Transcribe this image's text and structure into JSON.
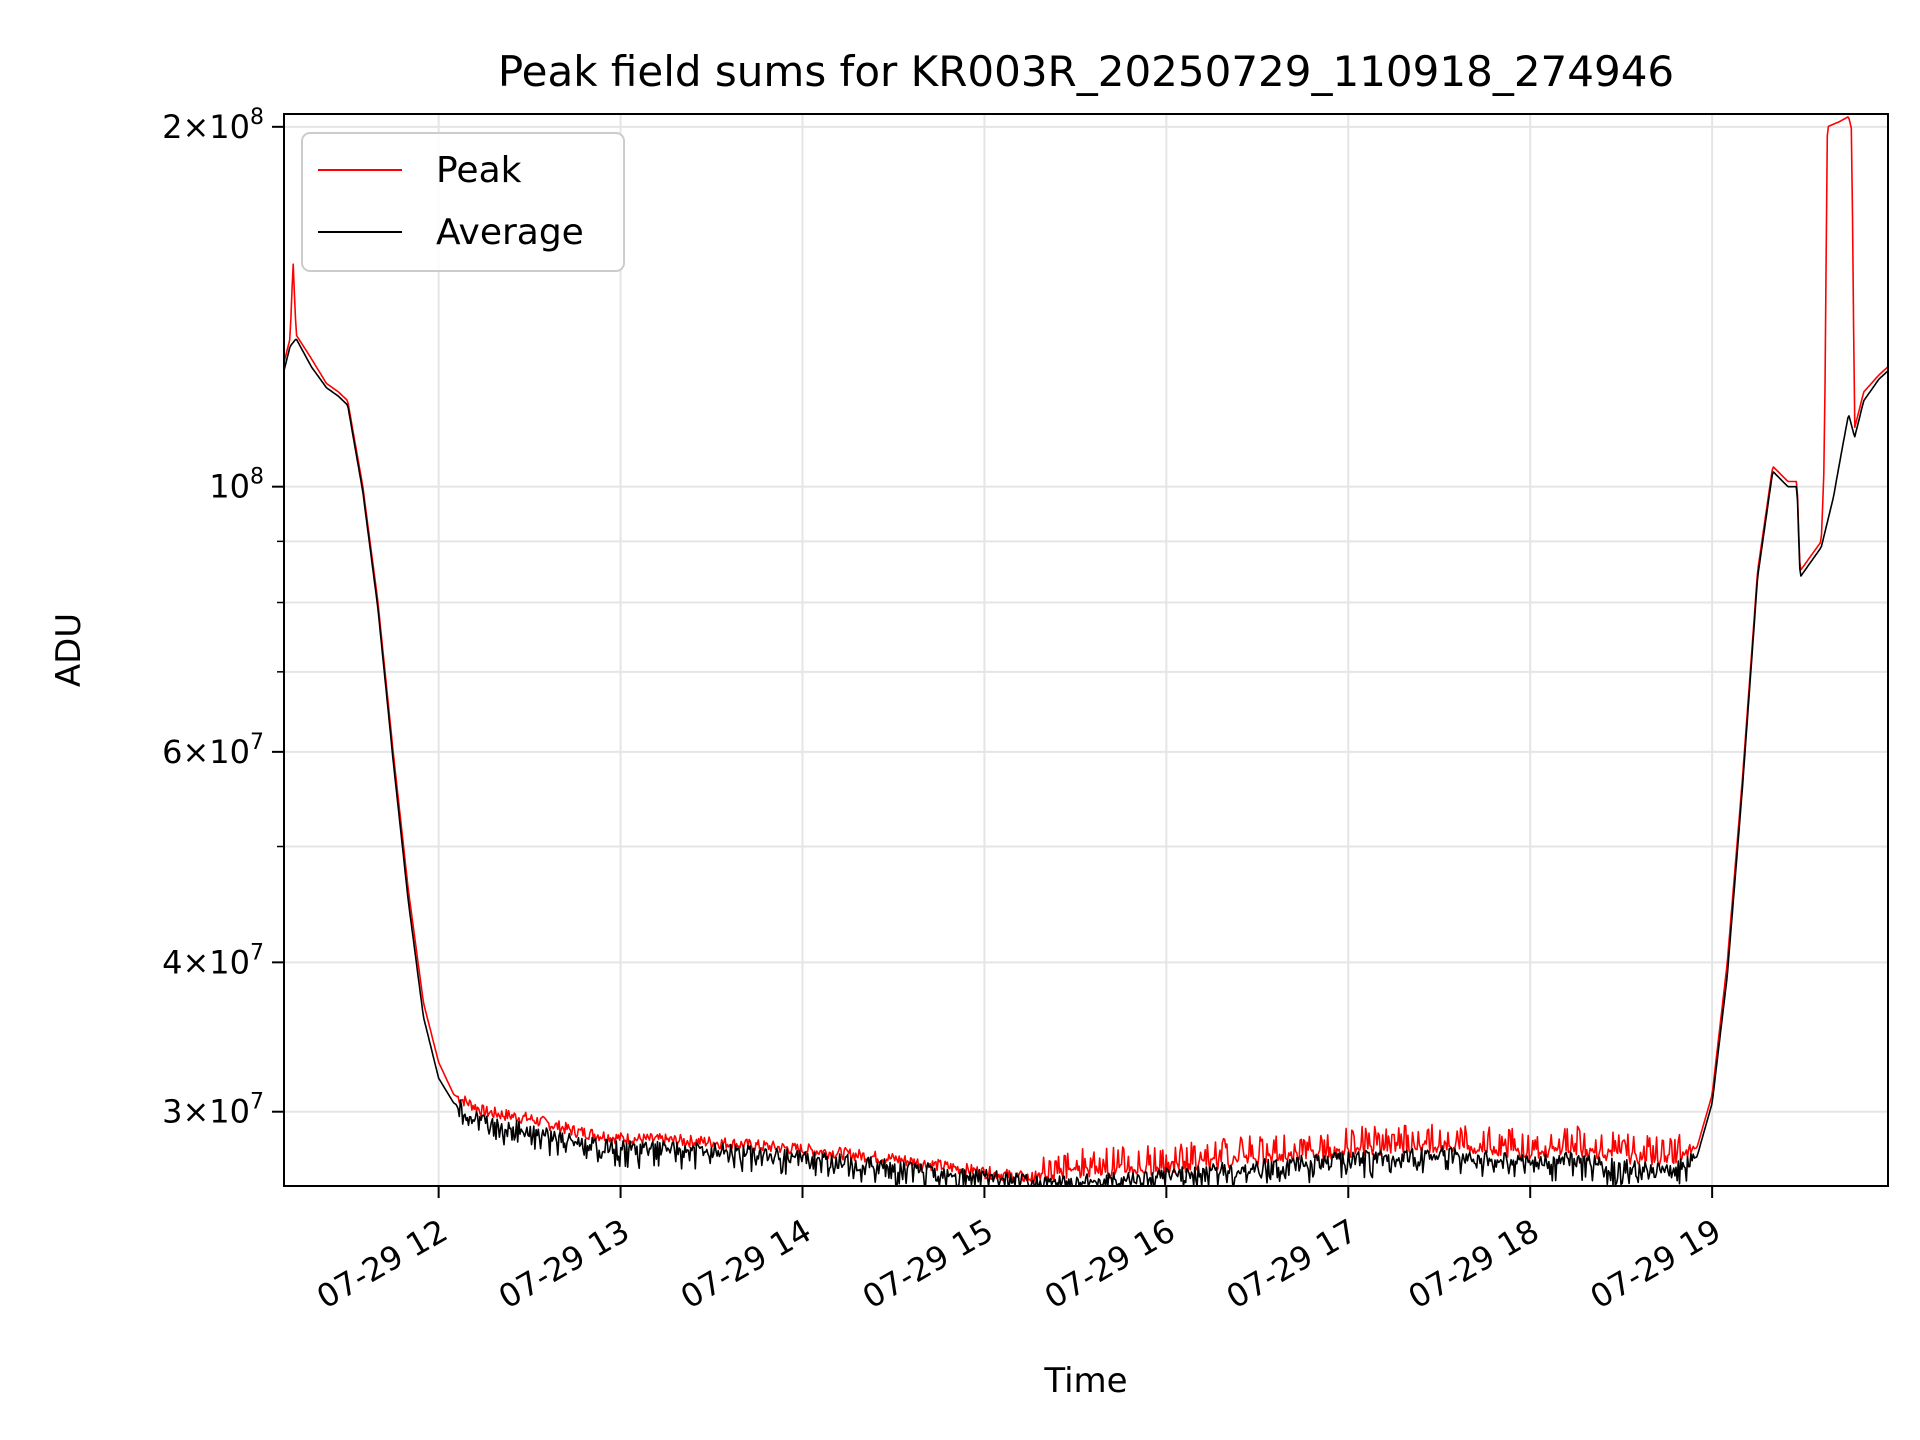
{
  "chart_data": {
    "type": "line",
    "title": "Peak field sums for KR003R_20250729_110918_274946",
    "xlabel": "Time",
    "ylabel": "ADU",
    "yscale": "log",
    "xlim": [
      "2025-07-29T11:09",
      "2025-07-29T19:58"
    ],
    "ylim": [
      26000000,
      205000000
    ],
    "grid": true,
    "legend_position": "upper-left",
    "x_ticks": [
      {
        "x": "2025-07-29T12:00",
        "label": "07-29 12"
      },
      {
        "x": "2025-07-29T13:00",
        "label": "07-29 13"
      },
      {
        "x": "2025-07-29T14:00",
        "label": "07-29 14"
      },
      {
        "x": "2025-07-29T15:00",
        "label": "07-29 15"
      },
      {
        "x": "2025-07-29T16:00",
        "label": "07-29 16"
      },
      {
        "x": "2025-07-29T17:00",
        "label": "07-29 17"
      },
      {
        "x": "2025-07-29T18:00",
        "label": "07-29 18"
      },
      {
        "x": "2025-07-29T19:00",
        "label": "07-29 19"
      }
    ],
    "y_ticks": [
      {
        "value": 200000000,
        "mantissa": "2",
        "exponent": "8"
      },
      {
        "value": 100000000,
        "mantissa": "",
        "exponent": "8"
      },
      {
        "value": 60000000,
        "mantissa": "6",
        "exponent": "7"
      },
      {
        "value": 40000000,
        "mantissa": "4",
        "exponent": "7"
      },
      {
        "value": 30000000,
        "mantissa": "3",
        "exponent": "7"
      }
    ],
    "y_minor_ticks": [
      90000000,
      80000000,
      70000000,
      50000000
    ],
    "series": [
      {
        "name": "Peak",
        "color": "#ff0000",
        "points": [
          [
            "2025-07-29T11:09",
            127000000
          ],
          [
            "2025-07-29T11:11",
            133000000
          ],
          [
            "2025-07-29T11:12",
            154000000
          ],
          [
            "2025-07-29T11:13",
            134000000
          ],
          [
            "2025-07-29T11:18",
            128000000
          ],
          [
            "2025-07-29T11:23",
            122000000
          ],
          [
            "2025-07-29T11:27",
            120000000
          ],
          [
            "2025-07-29T11:30",
            118000000
          ],
          [
            "2025-07-29T11:35",
            100000000
          ],
          [
            "2025-07-29T11:40",
            80000000
          ],
          [
            "2025-07-29T11:45",
            60000000
          ],
          [
            "2025-07-29T11:50",
            46000000
          ],
          [
            "2025-07-29T11:55",
            37000000
          ],
          [
            "2025-07-29T12:00",
            33000000
          ],
          [
            "2025-07-29T12:05",
            31000000
          ],
          [
            "2025-07-29T12:15",
            30000000
          ],
          [
            "2025-07-29T12:30",
            29600000
          ],
          [
            "2025-07-29T12:45",
            28900000
          ],
          [
            "2025-07-29T13:00",
            28500000
          ],
          [
            "2025-07-29T13:30",
            28300000
          ],
          [
            "2025-07-29T14:00",
            27900000
          ],
          [
            "2025-07-29T14:30",
            27400000
          ],
          [
            "2025-07-29T15:00",
            26700000
          ],
          [
            "2025-07-29T15:15",
            26400000
          ],
          [
            "2025-07-29T15:30",
            26700000
          ],
          [
            "2025-07-29T16:00",
            26900000
          ],
          [
            "2025-07-29T16:30",
            27400000
          ],
          [
            "2025-07-29T17:00",
            27800000
          ],
          [
            "2025-07-29T17:30",
            28100000
          ],
          [
            "2025-07-29T18:00",
            27700000
          ],
          [
            "2025-07-29T18:15",
            27900000
          ],
          [
            "2025-07-29T18:30",
            27500000
          ],
          [
            "2025-07-29T18:45",
            27300000
          ],
          [
            "2025-07-29T18:55",
            28000000
          ],
          [
            "2025-07-29T19:00",
            31000000
          ],
          [
            "2025-07-29T19:05",
            40000000
          ],
          [
            "2025-07-29T19:10",
            57000000
          ],
          [
            "2025-07-29T19:15",
            85000000
          ],
          [
            "2025-07-29T19:18",
            96000000
          ],
          [
            "2025-07-29T19:20",
            104000000
          ],
          [
            "2025-07-29T19:25",
            101000000
          ],
          [
            "2025-07-29T19:28",
            101000000
          ],
          [
            "2025-07-29T19:29",
            85000000
          ],
          [
            "2025-07-29T19:36",
            90000000
          ],
          [
            "2025-07-29T19:37",
            105000000
          ],
          [
            "2025-07-29T19:38",
            200000000
          ],
          [
            "2025-07-29T19:42",
            202000000
          ],
          [
            "2025-07-29T19:45",
            204000000
          ],
          [
            "2025-07-29T19:46",
            199000000
          ],
          [
            "2025-07-29T19:47",
            112000000
          ],
          [
            "2025-07-29T19:50",
            120000000
          ],
          [
            "2025-07-29T19:55",
            124000000
          ],
          [
            "2025-07-29T19:58",
            126000000
          ]
        ]
      },
      {
        "name": "Average",
        "color": "#000000",
        "points": [
          [
            "2025-07-29T11:09",
            125000000
          ],
          [
            "2025-07-29T11:11",
            131000000
          ],
          [
            "2025-07-29T11:13",
            133000000
          ],
          [
            "2025-07-29T11:18",
            126000000
          ],
          [
            "2025-07-29T11:23",
            121000000
          ],
          [
            "2025-07-29T11:27",
            119000000
          ],
          [
            "2025-07-29T11:30",
            117000000
          ],
          [
            "2025-07-29T11:35",
            99000000
          ],
          [
            "2025-07-29T11:40",
            79000000
          ],
          [
            "2025-07-29T11:45",
            59000000
          ],
          [
            "2025-07-29T11:50",
            45000000
          ],
          [
            "2025-07-29T11:55",
            36000000
          ],
          [
            "2025-07-29T12:00",
            32000000
          ],
          [
            "2025-07-29T12:05",
            30500000
          ],
          [
            "2025-07-29T12:15",
            29500000
          ],
          [
            "2025-07-29T12:30",
            29000000
          ],
          [
            "2025-07-29T12:45",
            28300000
          ],
          [
            "2025-07-29T13:00",
            28000000
          ],
          [
            "2025-07-29T13:30",
            27900000
          ],
          [
            "2025-07-29T14:00",
            27500000
          ],
          [
            "2025-07-29T14:30",
            27000000
          ],
          [
            "2025-07-29T15:00",
            26500000
          ],
          [
            "2025-07-29T15:15",
            26200000
          ],
          [
            "2025-07-29T15:30",
            26200000
          ],
          [
            "2025-07-29T16:00",
            26600000
          ],
          [
            "2025-07-29T16:30",
            27000000
          ],
          [
            "2025-07-29T17:00",
            27400000
          ],
          [
            "2025-07-29T17:30",
            27700000
          ],
          [
            "2025-07-29T18:00",
            27200000
          ],
          [
            "2025-07-29T18:15",
            27400000
          ],
          [
            "2025-07-29T18:30",
            27000000
          ],
          [
            "2025-07-29T18:45",
            26800000
          ],
          [
            "2025-07-29T18:55",
            27500000
          ],
          [
            "2025-07-29T19:00",
            30500000
          ],
          [
            "2025-07-29T19:05",
            39000000
          ],
          [
            "2025-07-29T19:10",
            56000000
          ],
          [
            "2025-07-29T19:15",
            84000000
          ],
          [
            "2025-07-29T19:18",
            95000000
          ],
          [
            "2025-07-29T19:20",
            103000000
          ],
          [
            "2025-07-29T19:25",
            100000000
          ],
          [
            "2025-07-29T19:28",
            100000000
          ],
          [
            "2025-07-29T19:29",
            84000000
          ],
          [
            "2025-07-29T19:36",
            89000000
          ],
          [
            "2025-07-29T19:40",
            98000000
          ],
          [
            "2025-07-29T19:43",
            108000000
          ],
          [
            "2025-07-29T19:45",
            115000000
          ],
          [
            "2025-07-29T19:47",
            110000000
          ],
          [
            "2025-07-29T19:50",
            118000000
          ],
          [
            "2025-07-29T19:55",
            123000000
          ],
          [
            "2025-07-29T19:58",
            125000000
          ]
        ]
      }
    ]
  }
}
